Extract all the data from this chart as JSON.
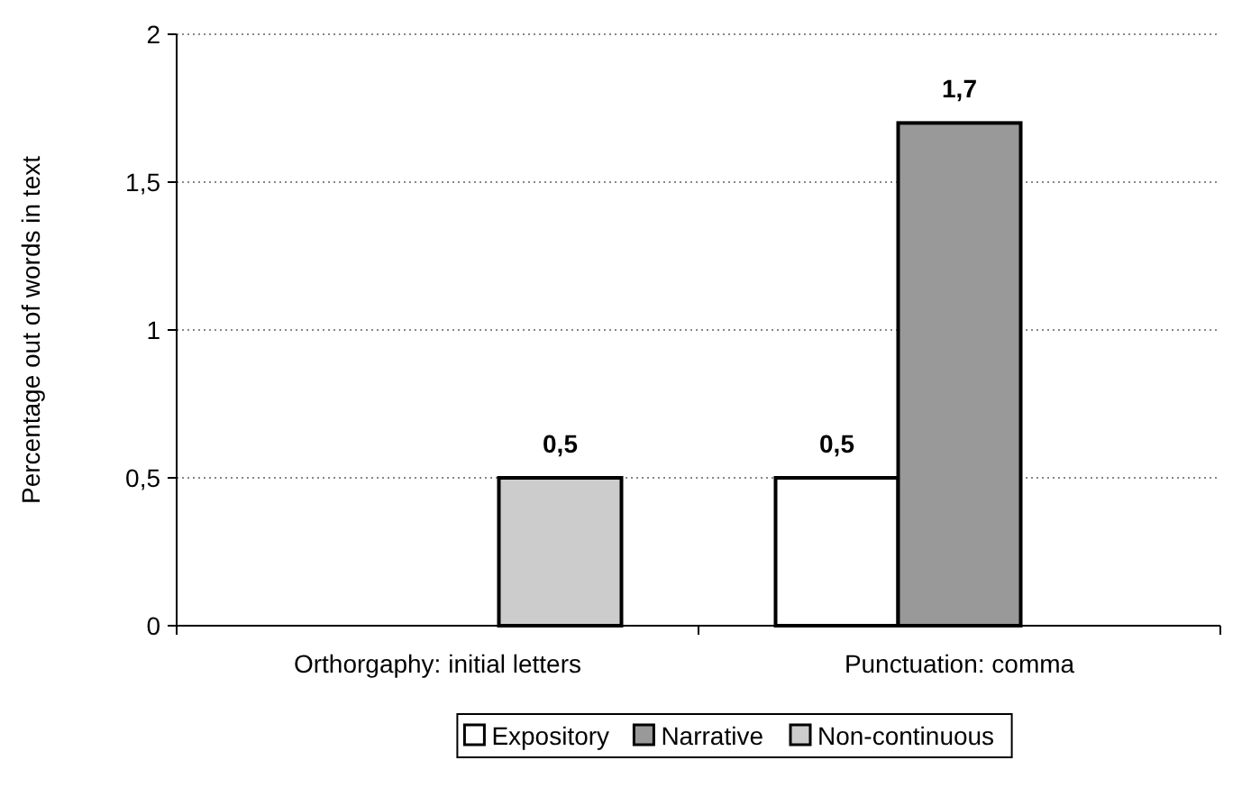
{
  "chart_data": {
    "type": "bar",
    "ylabel": "Percentage out of words in text",
    "categories": [
      "Orthorgaphy: initial letters",
      "Punctuation: comma"
    ],
    "series": [
      {
        "name": "Expository",
        "color": "#ffffff",
        "values": [
          null,
          0.5
        ],
        "value_labels": [
          null,
          "0,5"
        ]
      },
      {
        "name": "Narrative",
        "color": "#999999",
        "values": [
          null,
          1.7
        ],
        "value_labels": [
          null,
          "1,7"
        ]
      },
      {
        "name": "Non-continuous",
        "color": "#cccccc",
        "values": [
          0.5,
          null
        ],
        "value_labels": [
          "0,5",
          null
        ]
      }
    ],
    "ylim": [
      0,
      2
    ],
    "yticks": [
      0,
      {
        "value": 0.5,
        "label": "0,5"
      },
      1,
      {
        "value": 1.5,
        "label": "1,5"
      },
      2
    ],
    "grid": "y",
    "legend": "bottom"
  }
}
